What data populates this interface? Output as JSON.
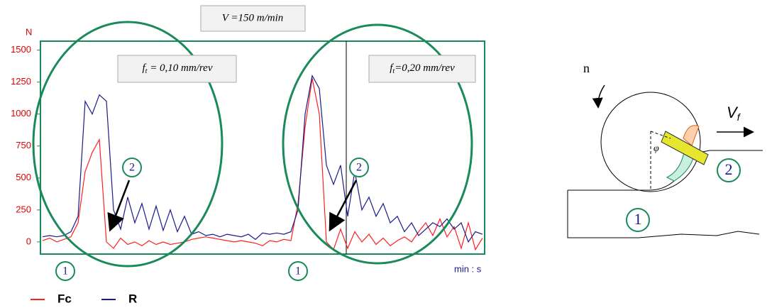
{
  "chart_data": {
    "type": "line",
    "y_label": "N",
    "x_label": "min : s",
    "ylim": [
      -95,
      1570
    ],
    "yticks": [
      0,
      250,
      500,
      750,
      1000,
      1250,
      1500
    ],
    "series": [
      {
        "name": "Fc",
        "color": "#ff2020",
        "values": [
          10,
          30,
          0,
          20,
          40,
          150,
          550,
          700,
          800,
          0,
          -50,
          30,
          -20,
          0,
          -30,
          10,
          -20,
          0,
          -20,
          -10,
          0,
          20,
          30,
          40,
          30,
          20,
          10,
          0,
          10,
          0,
          -10,
          -30,
          10,
          0,
          20,
          10,
          300,
          900,
          1280,
          1000,
          0,
          -60,
          100,
          -50,
          80,
          0,
          60,
          -20,
          30,
          -30,
          10,
          40,
          0,
          80,
          150,
          50,
          180,
          40,
          120,
          -50,
          150,
          -60,
          30
        ]
      },
      {
        "name": "R",
        "color": "#1a1a8c",
        "values": [
          40,
          50,
          40,
          50,
          80,
          200,
          1100,
          1000,
          1150,
          1100,
          250,
          100,
          350,
          150,
          300,
          100,
          280,
          90,
          250,
          80,
          200,
          60,
          80,
          50,
          60,
          40,
          60,
          50,
          40,
          60,
          20,
          70,
          60,
          70,
          60,
          80,
          250,
          1000,
          1300,
          1200,
          600,
          450,
          600,
          200,
          550,
          250,
          350,
          200,
          300,
          150,
          200,
          80,
          150,
          50,
          100,
          150,
          120,
          180,
          100,
          150,
          0,
          80,
          60
        ]
      }
    ],
    "annotations": {
      "speed": "V =150 m/min",
      "feed1": {
        "symbol": "f",
        "sub": "t",
        "rest": " = 0,10 mm/rev"
      },
      "feed2": {
        "symbol": "f",
        "sub": "t",
        "rest": "=0,20 mm/rev"
      },
      "markers": [
        "1",
        "2",
        "1",
        "2"
      ]
    }
  },
  "diagram": {
    "rotation": "n",
    "angle": "φ",
    "feed": {
      "symbol": "V",
      "sub": "f"
    },
    "zone1": "1",
    "zone2": "2"
  }
}
